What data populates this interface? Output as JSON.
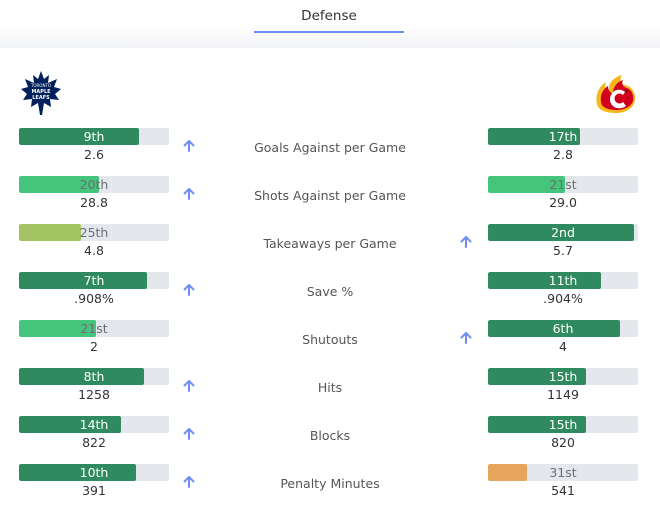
{
  "tab": {
    "label": "Defense"
  },
  "teams": {
    "left": {
      "name": "Toronto Maple Leafs",
      "logo_text": "TORONTO MAPLE LEAFS"
    },
    "right": {
      "name": "Calgary Flames"
    }
  },
  "colors": {
    "top": "#2f8a5f",
    "good": "#45c47c",
    "mid": "#a4c463",
    "bad": "#e6a55a",
    "track": "#e4e7eb",
    "arrow": "#6d8ef1"
  },
  "stats": [
    {
      "label": "Goals Against per Game",
      "advantage": "left",
      "left": {
        "rank": "9th",
        "value": "2.6",
        "fill_pct": 80,
        "tier": "top"
      },
      "right": {
        "rank": "17th",
        "value": "2.8",
        "fill_pct": 61,
        "tier": "top"
      }
    },
    {
      "label": "Shots Against per Game",
      "advantage": "left",
      "left": {
        "rank": "20th",
        "value": "28.8",
        "fill_pct": 53,
        "tier": "good"
      },
      "right": {
        "rank": "21st",
        "value": "29.0",
        "fill_pct": 51,
        "tier": "good"
      }
    },
    {
      "label": "Takeaways per Game",
      "advantage": "right",
      "left": {
        "rank": "25th",
        "value": "4.8",
        "fill_pct": 41,
        "tier": "mid"
      },
      "right": {
        "rank": "2nd",
        "value": "5.7",
        "fill_pct": 97,
        "tier": "top"
      }
    },
    {
      "label": "Save %",
      "advantage": "left",
      "left": {
        "rank": "7th",
        "value": ".908%",
        "fill_pct": 85,
        "tier": "top"
      },
      "right": {
        "rank": "11th",
        "value": ".904%",
        "fill_pct": 75,
        "tier": "top"
      }
    },
    {
      "label": "Shutouts",
      "advantage": "right",
      "left": {
        "rank": "21st",
        "value": "2",
        "fill_pct": 51,
        "tier": "good"
      },
      "right": {
        "rank": "6th",
        "value": "4",
        "fill_pct": 88,
        "tier": "top"
      }
    },
    {
      "label": "Hits",
      "advantage": "left",
      "left": {
        "rank": "8th",
        "value": "1258",
        "fill_pct": 83,
        "tier": "top"
      },
      "right": {
        "rank": "15th",
        "value": "1149",
        "fill_pct": 65,
        "tier": "top"
      }
    },
    {
      "label": "Blocks",
      "advantage": "left",
      "left": {
        "rank": "14th",
        "value": "822",
        "fill_pct": 68,
        "tier": "top"
      },
      "right": {
        "rank": "15th",
        "value": "820",
        "fill_pct": 65,
        "tier": "top"
      }
    },
    {
      "label": "Penalty Minutes",
      "advantage": "left",
      "left": {
        "rank": "10th",
        "value": "391",
        "fill_pct": 78,
        "tier": "top"
      },
      "right": {
        "rank": "31st",
        "value": "541",
        "fill_pct": 26,
        "tier": "bad"
      }
    }
  ]
}
